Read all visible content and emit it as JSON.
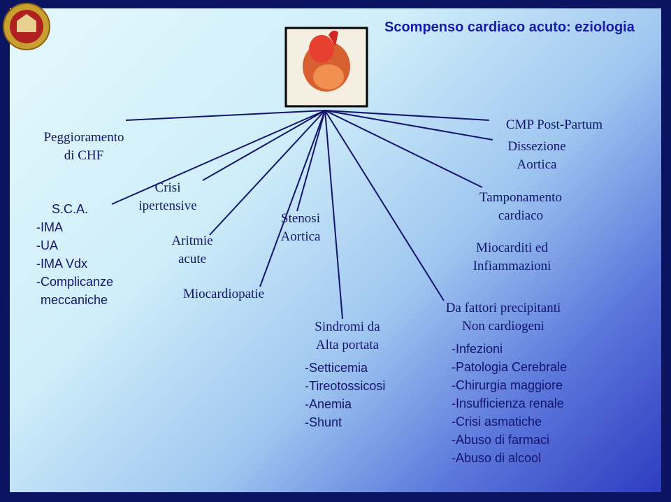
{
  "header": {
    "title": "Scompenso cardiaco acuto: eziologia"
  },
  "nodes": [
    {
      "lines": [
        "Peggioramento",
        "di CHF"
      ]
    },
    {
      "lines": [
        "S.C.A.",
        "-IMA",
        "-UA",
        "-IMA Vdx",
        "-Complicanze",
        "meccaniche"
      ]
    },
    {
      "lines": [
        "Crisi",
        "ipertensive"
      ]
    },
    {
      "lines": [
        "Aritmie",
        "acute"
      ]
    },
    {
      "lines": [
        "Miocardiopatie"
      ]
    },
    {
      "lines": [
        "Stenosi",
        "Aortica"
      ]
    },
    {
      "lines": [
        "Sindromi da",
        "Alta portata"
      ],
      "items": [
        "-Setticemia",
        "-Tireotossicosi",
        "-Anemia",
        "-Shunt"
      ]
    },
    {
      "lines": [
        "CMP Post-Partum"
      ]
    },
    {
      "lines": [
        "Dissezione",
        "Aortica"
      ]
    },
    {
      "lines": [
        "Tamponamento",
        "cardiaco"
      ]
    },
    {
      "lines": [
        "Miocarditi ed",
        "Infiammazioni"
      ]
    },
    {
      "lines": [
        "Da fattori precipitanti",
        "Non cardiogeni"
      ],
      "items": [
        "-Infezioni",
        "-Patologia Cerebrale",
        "-Chirurgia maggiore",
        "-Insufficienza renale",
        "-Crisi asmatiche",
        "-Abuso di farmaci",
        "-Abuso di alcool"
      ]
    }
  ]
}
